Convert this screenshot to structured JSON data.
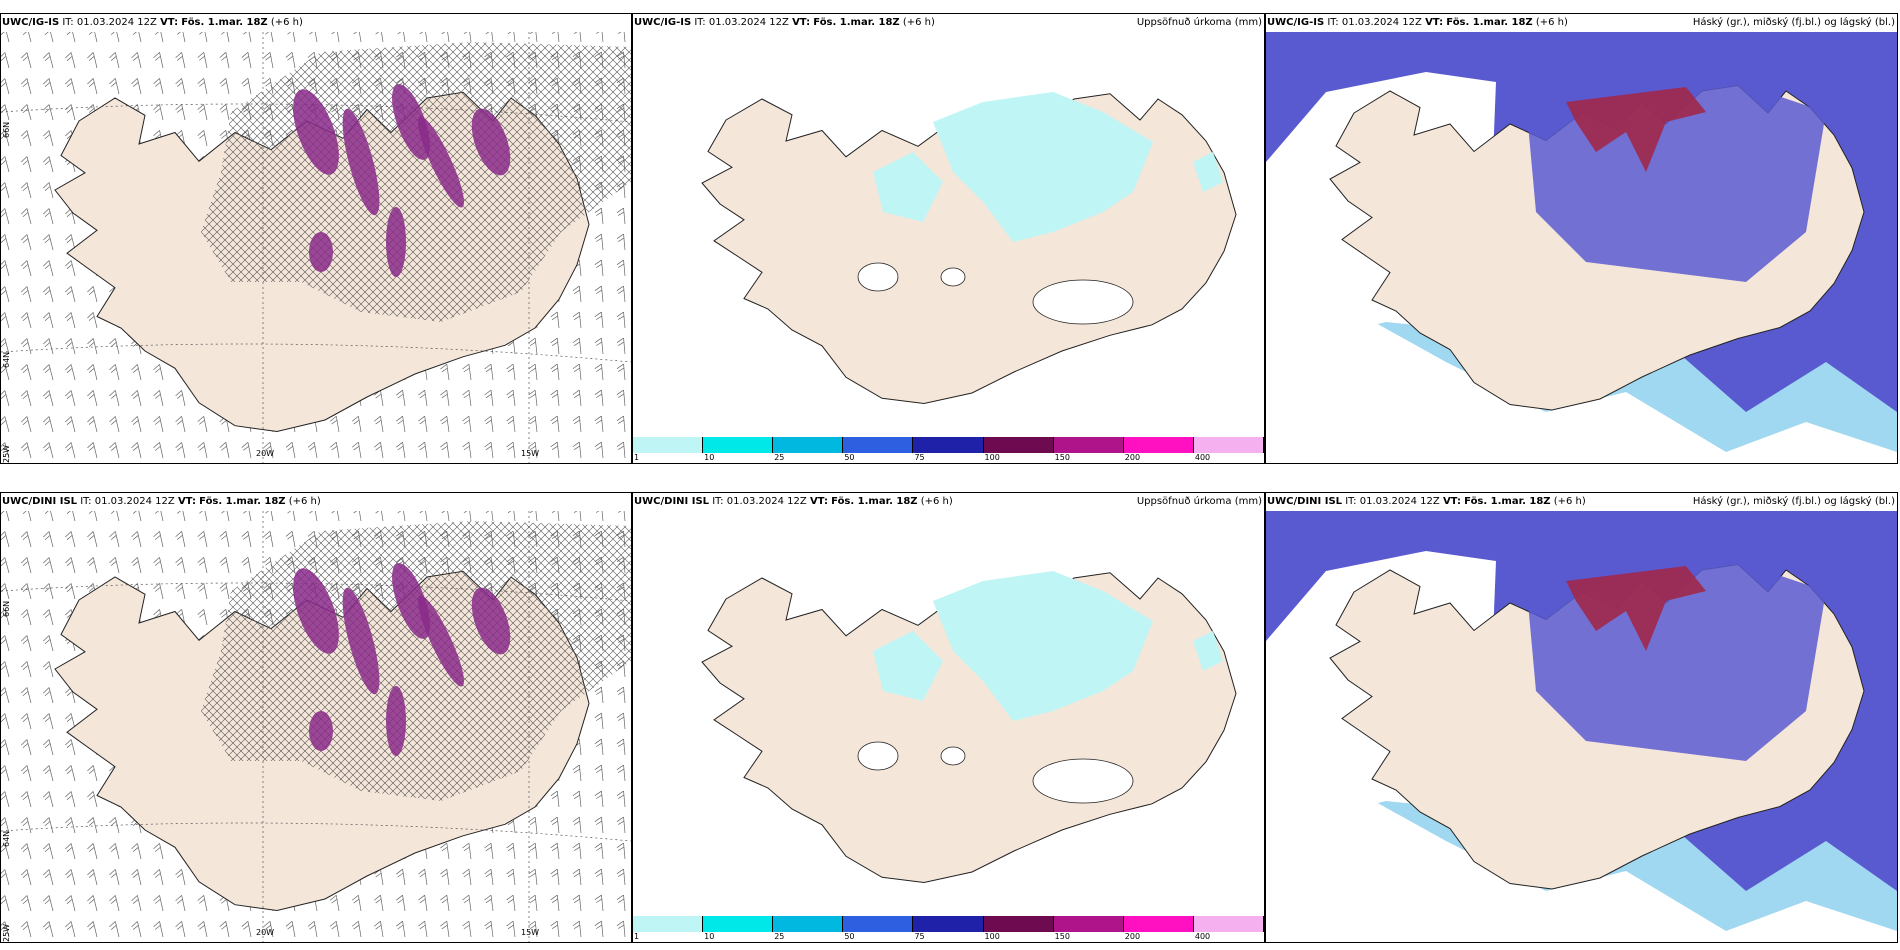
{
  "panels": [
    {
      "id": "p1",
      "source": "UWC/IG-IS",
      "it": "IT: 01.03.2024 12Z",
      "vt_label": "VT:",
      "vt": "Fös. 1.mar. 18Z",
      "lead": "(+6 h)",
      "right": "",
      "kind": "wind"
    },
    {
      "id": "p2",
      "source": "UWC/IG-IS",
      "it": "IT: 01.03.2024 12Z",
      "vt_label": "VT:",
      "vt": "Fös. 1.mar. 18Z",
      "lead": "(+6 h)",
      "right": "Uppsöfnuð úrkoma (mm)",
      "kind": "precip"
    },
    {
      "id": "p3",
      "source": "UWC/IG-IS",
      "it": "IT: 01.03.2024 12Z",
      "vt_label": "VT:",
      "vt": "Fös. 1.mar. 18Z",
      "lead": "(+6 h)",
      "right": "Háský (gr.), miðský (fj.bl.) og lágský (bl.)",
      "kind": "cloud"
    },
    {
      "id": "p4",
      "source": "UWC/DINI ISL",
      "it": "IT: 01.03.2024 12Z",
      "vt_label": "VT:",
      "vt": "Fös. 1.mar. 18Z",
      "lead": "(+6 h)",
      "right": "",
      "kind": "wind"
    },
    {
      "id": "p5",
      "source": "UWC/DINI ISL",
      "it": "IT: 01.03.2024 12Z",
      "vt_label": "VT:",
      "vt": "Fös. 1.mar. 18Z",
      "lead": "(+6 h)",
      "right": "Uppsöfnuð úrkoma (mm)",
      "kind": "precip"
    },
    {
      "id": "p6",
      "source": "UWC/DINI ISL",
      "it": "IT: 01.03.2024 12Z",
      "vt_label": "VT:",
      "vt": "Fös. 1.mar. 18Z",
      "lead": "(+6 h)",
      "right": "Háský (gr.), miðský (fj.bl.) og lágský (bl.)",
      "kind": "cloud"
    }
  ],
  "colorbar": {
    "ticks": [
      "1",
      "10",
      "25",
      "50",
      "75",
      "100",
      "150",
      "200",
      "400"
    ],
    "colors": [
      "#bff5f5",
      "#00e8e8",
      "#00b8e0",
      "#2e5fe0",
      "#1f22a8",
      "#6e0a50",
      "#b0148a",
      "#ff10c0",
      "#f5b0f0"
    ]
  },
  "grid_labels": {
    "lat_66": "66N",
    "lat_64": "64N",
    "lon_25": "25W",
    "lon_20": "20W",
    "lon_15": "15W"
  },
  "colors": {
    "land": "#f5e6da",
    "coast": "#222222",
    "high_cloud": "#5a5ad0",
    "mid_cloud": "#3a7ae8",
    "low_cloud": "#9fd8f0",
    "precip_purple": "#8a2a8a",
    "cirrus_red": "#a0284a"
  }
}
